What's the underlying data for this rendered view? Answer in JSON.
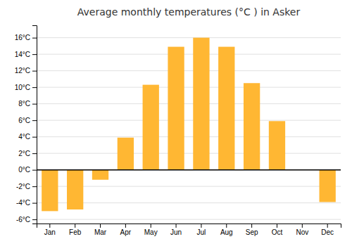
{
  "chart_data": {
    "type": "bar",
    "title": "Average monthly temperatures (°C ) in Asker",
    "categories": [
      "Jan",
      "Feb",
      "Mar",
      "Apr",
      "May",
      "Jun",
      "Jul",
      "Aug",
      "Sep",
      "Oct",
      "Nov",
      "Dec"
    ],
    "values": [
      -5.0,
      -4.8,
      -1.2,
      3.9,
      10.3,
      14.9,
      16.0,
      14.9,
      10.5,
      5.9,
      0.0,
      -3.9
    ],
    "color": "#FFB733",
    "ylim": [
      -6.5,
      17.5
    ],
    "yticks": [
      {
        "value": -6,
        "label": "-6°C"
      },
      {
        "value": -4,
        "label": "-4°C"
      },
      {
        "value": -2,
        "label": "-2°C"
      },
      {
        "value": 0,
        "label": "0°C"
      },
      {
        "value": 2,
        "label": "2°C"
      },
      {
        "value": 4,
        "label": "4°C"
      },
      {
        "value": 6,
        "label": "6°C"
      },
      {
        "value": 8,
        "label": "8°C"
      },
      {
        "value": 10,
        "label": "10°C"
      },
      {
        "value": 12,
        "label": "12°C"
      },
      {
        "value": 14,
        "label": "14°C"
      },
      {
        "value": 16,
        "label": "16°C"
      }
    ],
    "grid": true
  }
}
